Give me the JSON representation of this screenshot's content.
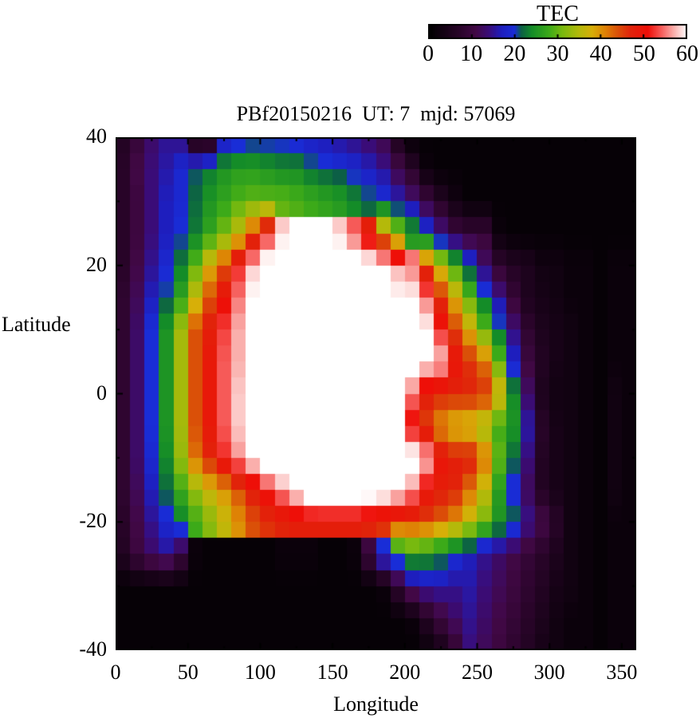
{
  "title": "PBf20150216  UT: 7  mjd: 57069",
  "colorbar": {
    "label": "TEC",
    "tick_labels": [
      "0",
      "10",
      "20",
      "30",
      "40",
      "50",
      "60"
    ],
    "tick_values": [
      0,
      10,
      20,
      30,
      40,
      50,
      60
    ],
    "min": 0,
    "max": 60
  },
  "axes": {
    "xlabel": "Longitude",
    "ylabel": "Latitude",
    "x_tick_values": [
      0,
      50,
      100,
      150,
      200,
      250,
      300,
      350
    ],
    "x_minor_step": 25,
    "y_tick_values": [
      40,
      20,
      0,
      -20,
      -40
    ],
    "y_minor_step": 10,
    "xlim": [
      0,
      360
    ],
    "ylim": [
      -40,
      40
    ]
  },
  "chart_data": {
    "type": "heatmap",
    "title": "PBf20150216  UT: 7  mjd: 57069",
    "value_label": "TEC",
    "colorbar_range": [
      0,
      60
    ],
    "grid_on": false,
    "lon": [
      0,
      10,
      20,
      30,
      40,
      50,
      60,
      70,
      80,
      90,
      100,
      110,
      120,
      130,
      140,
      150,
      160,
      170,
      180,
      190,
      200,
      210,
      220,
      230,
      240,
      250,
      260,
      270,
      280,
      290,
      300,
      310,
      320,
      330,
      340,
      350
    ],
    "lat": [
      40,
      35,
      30,
      25,
      20,
      15,
      10,
      5,
      0,
      -5,
      -10,
      -15,
      -20,
      -25,
      -30,
      -35,
      -40
    ],
    "values": [
      [
        6,
        9,
        13,
        15,
        14,
        2,
        2,
        16,
        18,
        19,
        19,
        19,
        18,
        17,
        16,
        15,
        14,
        13,
        11,
        5,
        1,
        1,
        1,
        1,
        1,
        1,
        1,
        1,
        1,
        1,
        1,
        1,
        1,
        1,
        1,
        1
      ],
      [
        7,
        11,
        14,
        16,
        19,
        21,
        23,
        25,
        26,
        26,
        25,
        24,
        24,
        22,
        21,
        20,
        19,
        17,
        15,
        11,
        7,
        2,
        1,
        1,
        1,
        1,
        1,
        1,
        1,
        1,
        1,
        1,
        1,
        1,
        1,
        1
      ],
      [
        7,
        10,
        14,
        17,
        19,
        22,
        25,
        27,
        29,
        30,
        30,
        30,
        29,
        28,
        27,
        26,
        24,
        22,
        20,
        17,
        14,
        10,
        6,
        3,
        1,
        1,
        1,
        1,
        1,
        1,
        1,
        1,
        1,
        1,
        1,
        1
      ],
      [
        7,
        10,
        14,
        17,
        20,
        23,
        27,
        31,
        36,
        44,
        52,
        58,
        61,
        62,
        61,
        58,
        54,
        48,
        40,
        33,
        26,
        20,
        15,
        10,
        9,
        9,
        2,
        1,
        1,
        1,
        1,
        1,
        1,
        1,
        1,
        1
      ],
      [
        7,
        11,
        15,
        19,
        23,
        30,
        38,
        44,
        52,
        58,
        62,
        64,
        64,
        64,
        64,
        64,
        63,
        62,
        60,
        57,
        55,
        45,
        36,
        28,
        20,
        13,
        8,
        6,
        5,
        3,
        3,
        2,
        2,
        1,
        2,
        2
      ],
      [
        8,
        12,
        17,
        21,
        27,
        36,
        44,
        50,
        55,
        60,
        64,
        65,
        65,
        65,
        65,
        65,
        64,
        63,
        62,
        60,
        60,
        55,
        46,
        38,
        30,
        22,
        15,
        9,
        5,
        4,
        3,
        2,
        2,
        1,
        2,
        2
      ],
      [
        8,
        13,
        20,
        25,
        34,
        44,
        48,
        53,
        57,
        60,
        64,
        65,
        65,
        65,
        65,
        65,
        65,
        64,
        63,
        62,
        60,
        60,
        52,
        45,
        38,
        30,
        22,
        14,
        8,
        5,
        4,
        3,
        2,
        1,
        2,
        2
      ],
      [
        8,
        13,
        20,
        25,
        34,
        44,
        49,
        54,
        57,
        61,
        64,
        65,
        65,
        65,
        65,
        65,
        65,
        65,
        64,
        63,
        62,
        60,
        58,
        50,
        46,
        42,
        30,
        18,
        10,
        6,
        4,
        3,
        2,
        1,
        2,
        2
      ],
      [
        8,
        13,
        20,
        25,
        34,
        44,
        49,
        54,
        58,
        61,
        64,
        65,
        65,
        65,
        65,
        65,
        65,
        65,
        64,
        62,
        55,
        48,
        47,
        47,
        47,
        46,
        38,
        24,
        13,
        5,
        3,
        3,
        2,
        1,
        3,
        2
      ],
      [
        8,
        13,
        20,
        25,
        34,
        44,
        49,
        54,
        58,
        62,
        65,
        65,
        65,
        65,
        65,
        65,
        65,
        65,
        64,
        60,
        50,
        45,
        40,
        37,
        36,
        33,
        28,
        25,
        16,
        7,
        4,
        3,
        2,
        1,
        3,
        2
      ],
      [
        8,
        13,
        19,
        24,
        33,
        42,
        47,
        52,
        56,
        60,
        64,
        65,
        65,
        65,
        65,
        65,
        65,
        65,
        64,
        63,
        62,
        58,
        50,
        48,
        48,
        42,
        30,
        22,
        14,
        6,
        4,
        3,
        2,
        1,
        3,
        2
      ],
      [
        8,
        12,
        17,
        22,
        28,
        33,
        37,
        40,
        44,
        48,
        52,
        56,
        60,
        64,
        65,
        65,
        65,
        64,
        63,
        60,
        56,
        50,
        48,
        47,
        42,
        36,
        26,
        19,
        12,
        6,
        4,
        3,
        2,
        1,
        3,
        2
      ],
      [
        7,
        11,
        15,
        19,
        23,
        28,
        32,
        36,
        40,
        44,
        46,
        47,
        48,
        48,
        48,
        48,
        48,
        47,
        46,
        46,
        46,
        45,
        43,
        40,
        36,
        31,
        25,
        22,
        15,
        11,
        7,
        3,
        2,
        1,
        2,
        2
      ],
      [
        6,
        10,
        13,
        15,
        10,
        2,
        1,
        1,
        1,
        1,
        1,
        2,
        2,
        2,
        1,
        1,
        2,
        10,
        20,
        24,
        26,
        25,
        23,
        20,
        17,
        15,
        13,
        11,
        9,
        7,
        5,
        3,
        2,
        1,
        2,
        2
      ],
      [
        1,
        1,
        1,
        1,
        1,
        1,
        1,
        1,
        1,
        1,
        1,
        1,
        1,
        1,
        1,
        1,
        1,
        1,
        2,
        8,
        14,
        16,
        16,
        15,
        16,
        14,
        12,
        10,
        8,
        6,
        4,
        3,
        2,
        1,
        2,
        2
      ],
      [
        1,
        1,
        1,
        1,
        1,
        1,
        1,
        1,
        1,
        1,
        1,
        1,
        1,
        1,
        1,
        1,
        1,
        1,
        1,
        1,
        2,
        6,
        10,
        13,
        15,
        13,
        11,
        9,
        7,
        5,
        3,
        2,
        2,
        1,
        2,
        2
      ],
      [
        1,
        1,
        1,
        1,
        1,
        1,
        1,
        1,
        1,
        1,
        1,
        1,
        1,
        1,
        1,
        1,
        1,
        1,
        1,
        1,
        1,
        2,
        4,
        8,
        14,
        12,
        10,
        8,
        6,
        4,
        3,
        2,
        2,
        1,
        2,
        2
      ]
    ],
    "palette_stops": [
      [
        0,
        0,
        0,
        0
      ],
      [
        7,
        40,
        4,
        40
      ],
      [
        11,
        66,
        8,
        70
      ],
      [
        14,
        58,
        12,
        120
      ],
      [
        17,
        30,
        30,
        190
      ],
      [
        20,
        25,
        45,
        215
      ],
      [
        21.5,
        12,
        95,
        70
      ],
      [
        24,
        20,
        140,
        40
      ],
      [
        28,
        60,
        170,
        25
      ],
      [
        31,
        120,
        185,
        15
      ],
      [
        35,
        180,
        185,
        10
      ],
      [
        38,
        215,
        175,
        8
      ],
      [
        41,
        222,
        130,
        5
      ],
      [
        44,
        218,
        80,
        8
      ],
      [
        47,
        225,
        35,
        10
      ],
      [
        51,
        238,
        15,
        8
      ],
      [
        54,
        246,
        90,
        88
      ],
      [
        57,
        250,
        175,
        172
      ],
      [
        60,
        255,
        255,
        255
      ]
    ],
    "border_color": "#000000",
    "background_color": "#ffffff"
  }
}
